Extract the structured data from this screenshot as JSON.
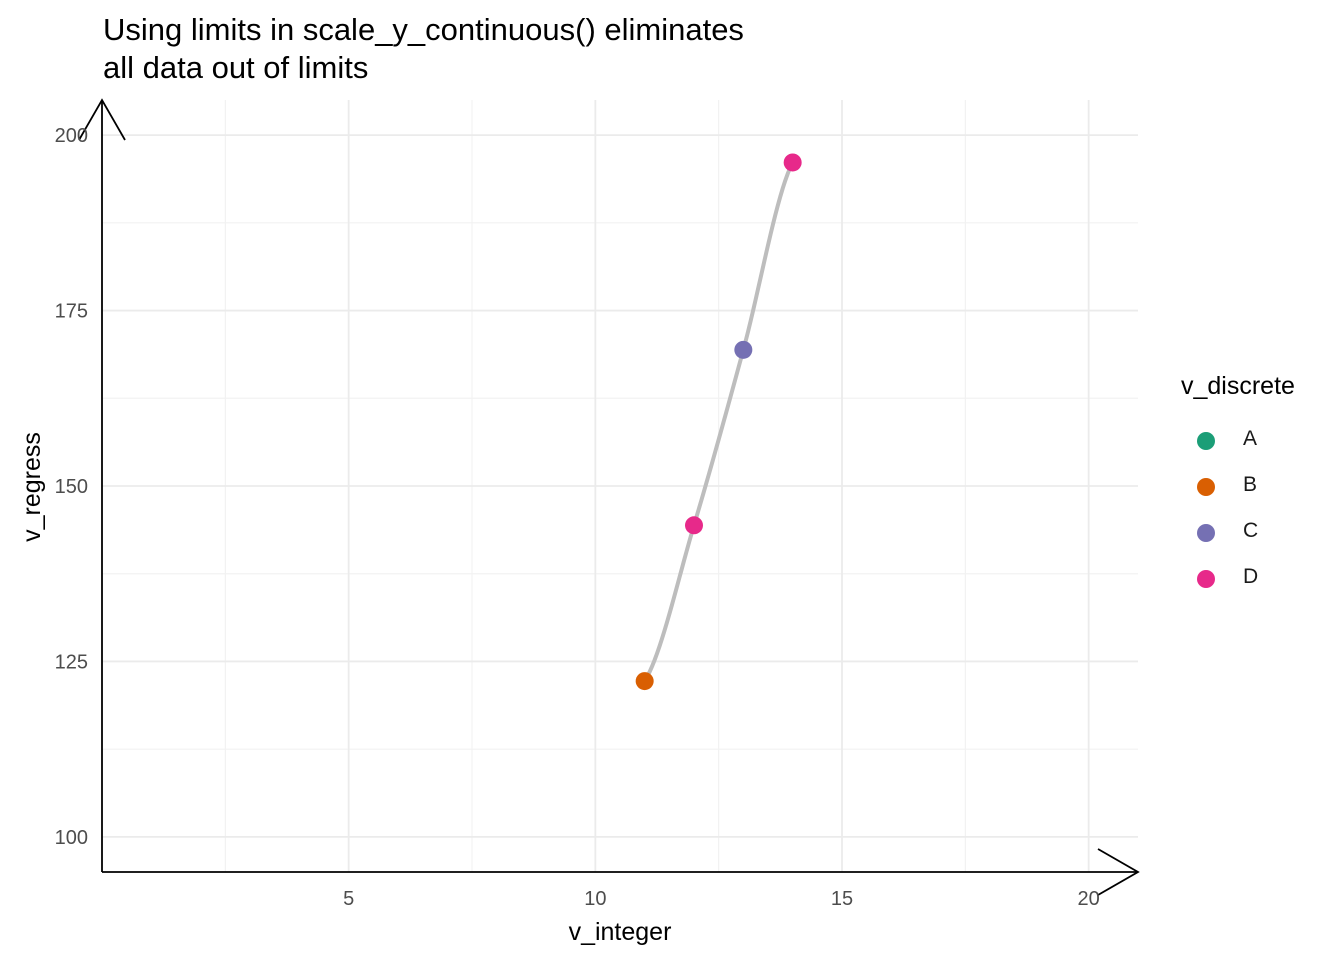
{
  "chart_data": {
    "type": "scatter",
    "title_lines": [
      "Using limits in scale_y_continuous() eliminates",
      "all data out of limits"
    ],
    "xlabel": "v_integer",
    "ylabel": "v_regress",
    "xlim": [
      0,
      21
    ],
    "ylim": [
      95,
      205
    ],
    "x_ticks": [
      5,
      10,
      15,
      20
    ],
    "y_ticks": [
      100,
      125,
      150,
      175,
      200
    ],
    "grid": true,
    "legend": {
      "title": "v_discrete",
      "placement": "right",
      "entries": [
        {
          "label": "A",
          "color": "#1B9E77"
        },
        {
          "label": "B",
          "color": "#D95F02"
        },
        {
          "label": "C",
          "color": "#7570B3"
        },
        {
          "label": "D",
          "color": "#E7298A"
        }
      ]
    },
    "points": [
      {
        "x": 11,
        "y": 122.2,
        "group": "B"
      },
      {
        "x": 12,
        "y": 144.4,
        "group": "D"
      },
      {
        "x": 13,
        "y": 169.4,
        "group": "C"
      },
      {
        "x": 14,
        "y": 196.1,
        "group": "D"
      }
    ],
    "smooth_line": {
      "color": "#bdbdbd",
      "points": [
        [
          11,
          122.2
        ],
        [
          12,
          144.4
        ],
        [
          13,
          169.4
        ],
        [
          14,
          196.1
        ]
      ]
    }
  }
}
